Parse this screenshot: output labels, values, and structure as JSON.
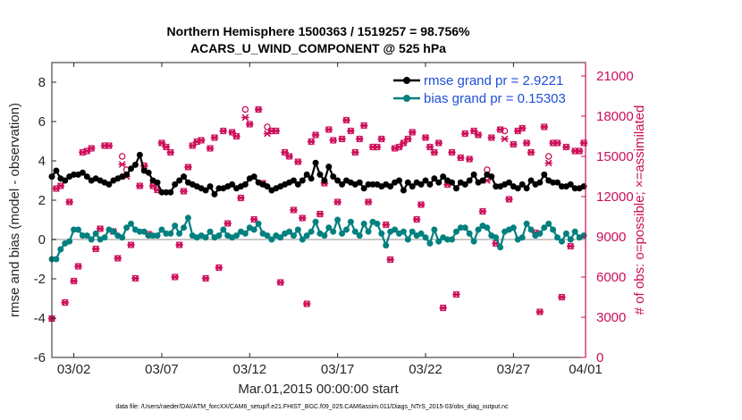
{
  "chart_data": {
    "type": "line",
    "title": "Northern Hemisphere 1500363 / 1519257 = 98.756%",
    "subtitle": "ACARS_U_WIND_COMPONENT @ 525 hPa",
    "xlabel": "Mar.01,2015 00:00:00 start",
    "ylabel_left": "rmse and bias (model - observation)",
    "ylabel_right": "# of obs: o=possible; ×=assimilated",
    "xlim": [
      0.75,
      31.1
    ],
    "ylim_left": [
      -6,
      9
    ],
    "ylim_right": [
      0,
      21999
    ],
    "x_ticks": [
      2,
      7,
      12,
      17,
      22,
      27,
      32
    ],
    "x_tick_labels": [
      "03/02",
      "03/07",
      "03/12",
      "03/17",
      "03/22",
      "03/27",
      "04/01"
    ],
    "y_ticks_left": [
      -6,
      -4,
      -2,
      0,
      2,
      4,
      6,
      8
    ],
    "y_tick_labels_left": [
      "-6",
      "-4",
      "-2",
      "0",
      "2",
      "4",
      "6",
      "8"
    ],
    "y_ticks_right": [
      0,
      3000,
      6000,
      9000,
      12000,
      15000,
      18000,
      21000
    ],
    "y_tick_labels_right": [
      "0",
      "3000",
      "6000",
      "9000",
      "12000",
      "15000",
      "18000",
      "21000"
    ],
    "legend_position": "top-right",
    "colors": {
      "rmse": "#000000",
      "bias": "#00807f",
      "obs": "#cc0e5a",
      "zero_line": "#c8c8c8",
      "legend_text": "#1f4fd8"
    },
    "series": [
      {
        "name": "rmse grand pr = 2.9221",
        "axis": "left",
        "x": [
          0.75,
          1.0,
          1.25,
          1.5,
          1.75,
          2.0,
          2.25,
          2.5,
          2.75,
          3.0,
          3.25,
          3.5,
          3.75,
          4.0,
          4.25,
          4.5,
          4.75,
          5.0,
          5.25,
          5.5,
          5.75,
          6.0,
          6.25,
          6.5,
          6.75,
          7.0,
          7.25,
          7.5,
          7.75,
          8.0,
          8.25,
          8.5,
          8.75,
          9.0,
          9.25,
          9.5,
          9.75,
          10.0,
          10.25,
          10.5,
          10.75,
          11.0,
          11.25,
          11.5,
          11.75,
          12.0,
          12.25,
          12.5,
          12.75,
          13.0,
          13.25,
          13.5,
          13.75,
          14.0,
          14.25,
          14.5,
          14.75,
          15.0,
          15.25,
          15.5,
          15.75,
          16.0,
          16.25,
          16.5,
          16.75,
          17.0,
          17.25,
          17.5,
          17.75,
          18.0,
          18.25,
          18.5,
          18.75,
          19.0,
          19.25,
          19.5,
          19.75,
          20.0,
          20.25,
          20.5,
          20.75,
          21.0,
          21.25,
          21.5,
          21.75,
          22.0,
          22.25,
          22.5,
          22.75,
          23.0,
          23.25,
          23.5,
          23.75,
          24.0,
          24.25,
          24.5,
          24.75,
          25.0,
          25.25,
          25.5,
          25.75,
          26.0,
          26.25,
          26.5,
          26.75,
          27.0,
          27.25,
          27.5,
          27.75,
          28.0,
          28.25,
          28.5,
          28.75,
          29.0,
          29.25,
          29.5,
          29.75,
          30.0,
          30.25,
          30.5,
          30.75,
          31.0
        ],
        "y": [
          3.2,
          3.5,
          3.1,
          3.0,
          3.2,
          3.3,
          3.3,
          3.4,
          3.2,
          3.0,
          3.1,
          3.0,
          2.9,
          2.8,
          3.0,
          3.1,
          3.2,
          3.3,
          3.6,
          3.8,
          4.3,
          3.5,
          3.4,
          3.0,
          2.9,
          2.4,
          2.4,
          2.4,
          2.8,
          3.0,
          3.2,
          2.9,
          2.8,
          2.7,
          2.6,
          2.5,
          2.7,
          2.3,
          2.6,
          2.6,
          2.7,
          2.8,
          2.6,
          2.7,
          2.8,
          3.1,
          3.2,
          2.9,
          2.8,
          2.7,
          2.5,
          2.6,
          2.7,
          2.8,
          2.9,
          3.0,
          2.8,
          3.0,
          3.3,
          3.1,
          3.9,
          3.3,
          3.0,
          3.7,
          3.2,
          3.0,
          2.8,
          3.0,
          2.9,
          2.8,
          2.9,
          2.6,
          2.8,
          2.8,
          2.8,
          2.7,
          2.8,
          2.7,
          2.9,
          3.0,
          2.5,
          2.9,
          2.7,
          2.9,
          2.8,
          3.0,
          2.8,
          3.1,
          2.9,
          3.2,
          3.0,
          2.9,
          2.6,
          2.9,
          2.8,
          3.0,
          3.3,
          2.9,
          3.0,
          3.3,
          3.2,
          2.7,
          2.7,
          2.8,
          2.9,
          2.7,
          2.6,
          2.8,
          2.6,
          3.0,
          2.8,
          2.9,
          3.3,
          3.0,
          2.9,
          2.9,
          2.7,
          2.7,
          2.8,
          2.6,
          2.6,
          2.7
        ]
      },
      {
        "name": "bias grand pr = 0.15303",
        "axis": "left",
        "x": [
          0.75,
          1.0,
          1.25,
          1.5,
          1.75,
          2.0,
          2.25,
          2.5,
          2.75,
          3.0,
          3.25,
          3.5,
          3.75,
          4.0,
          4.25,
          4.5,
          4.75,
          5.0,
          5.25,
          5.5,
          5.75,
          6.0,
          6.25,
          6.5,
          6.75,
          7.0,
          7.25,
          7.5,
          7.75,
          8.0,
          8.25,
          8.5,
          8.75,
          9.0,
          9.25,
          9.5,
          9.75,
          10.0,
          10.25,
          10.5,
          10.75,
          11.0,
          11.25,
          11.5,
          11.75,
          12.0,
          12.25,
          12.5,
          12.75,
          13.0,
          13.25,
          13.5,
          13.75,
          14.0,
          14.25,
          14.5,
          14.75,
          15.0,
          15.25,
          15.5,
          15.75,
          16.0,
          16.25,
          16.5,
          16.75,
          17.0,
          17.25,
          17.5,
          17.75,
          18.0,
          18.25,
          18.5,
          18.75,
          19.0,
          19.25,
          19.5,
          19.75,
          20.0,
          20.25,
          20.5,
          20.75,
          21.0,
          21.25,
          21.5,
          21.75,
          22.0,
          22.25,
          22.5,
          22.75,
          23.0,
          23.25,
          23.5,
          23.75,
          24.0,
          24.25,
          24.5,
          24.75,
          25.0,
          25.25,
          25.5,
          25.75,
          26.0,
          26.25,
          26.5,
          26.75,
          27.0,
          27.25,
          27.5,
          27.75,
          28.0,
          28.25,
          28.5,
          28.75,
          29.0,
          29.25,
          29.5,
          29.75,
          30.0,
          30.25,
          30.5,
          30.75,
          31.0
        ],
        "y": [
          -1.0,
          -1.0,
          -0.5,
          -0.2,
          -0.1,
          0.5,
          0.5,
          0.2,
          0.2,
          0.0,
          0.3,
          0.0,
          0.1,
          0.5,
          0.4,
          0.2,
          0.1,
          0.6,
          0.8,
          0.5,
          0.4,
          0.4,
          0.2,
          0.2,
          0.2,
          0.5,
          0.3,
          0.3,
          0.7,
          0.3,
          0.6,
          1.1,
          0.2,
          0.1,
          0.2,
          0.1,
          0.4,
          0.1,
          0.2,
          0.5,
          0.2,
          0.1,
          0.2,
          0.4,
          0.3,
          0.6,
          0.5,
          0.8,
          0.3,
          0.2,
          0.0,
          0.2,
          0.1,
          0.3,
          0.4,
          0.2,
          0.5,
          0.0,
          0.2,
          0.4,
          0.9,
          0.3,
          0.2,
          0.6,
          0.4,
          1.0,
          0.3,
          0.5,
          0.9,
          0.4,
          0.2,
          0.8,
          0.4,
          0.9,
          0.8,
          0.3,
          -0.3,
          0.4,
          0.5,
          0.3,
          0.4,
          0.0,
          0.4,
          0.2,
          0.3,
          0.1,
          -0.2,
          0.5,
          -0.1,
          0.1,
          0.0,
          0.0,
          0.4,
          0.6,
          0.6,
          0.3,
          -0.1,
          0.5,
          0.7,
          0.6,
          0.2,
          0.1,
          -0.4,
          0.4,
          0.5,
          0.6,
          0.0,
          0.1,
          0.8,
          0.5,
          0.2,
          0.3,
          0.6,
          0.8,
          0.5,
          0.1,
          -0.1,
          0.3,
          0.0,
          0.4,
          0.1,
          0.2
        ]
      },
      {
        "name": "# of obs possible (o)",
        "axis": "right",
        "marker": "circle",
        "x": [
          0.75,
          1.0,
          1.25,
          1.5,
          1.75,
          2.0,
          2.25,
          2.5,
          2.75,
          3.0,
          3.25,
          3.5,
          3.75,
          4.0,
          4.25,
          4.5,
          4.75,
          5.0,
          5.25,
          5.5,
          5.75,
          6.0,
          6.25,
          6.5,
          6.75,
          7.0,
          7.25,
          7.5,
          7.75,
          8.0,
          8.25,
          8.5,
          8.75,
          9.0,
          9.25,
          9.5,
          9.75,
          10.0,
          10.25,
          10.5,
          10.75,
          11.0,
          11.25,
          11.5,
          11.75,
          12.0,
          12.25,
          12.5,
          12.75,
          13.0,
          13.25,
          13.5,
          13.75,
          14.0,
          14.25,
          14.5,
          14.75,
          15.0,
          15.25,
          15.5,
          15.75,
          16.0,
          16.25,
          16.5,
          16.75,
          17.0,
          17.25,
          17.5,
          17.75,
          18.0,
          18.25,
          18.5,
          18.75,
          19.0,
          19.25,
          19.5,
          19.75,
          20.0,
          20.25,
          20.5,
          20.75,
          21.0,
          21.25,
          21.5,
          21.75,
          22.0,
          22.25,
          22.5,
          22.75,
          23.0,
          23.25,
          23.5,
          23.75,
          24.0,
          24.25,
          24.5,
          24.75,
          25.0,
          25.25,
          25.5,
          25.75,
          26.0,
          26.25,
          26.5,
          26.75,
          27.0,
          27.25,
          27.5,
          27.75,
          28.0,
          28.25,
          28.5,
          28.75,
          29.0,
          29.25,
          29.5,
          29.75,
          30.0,
          30.25,
          30.5,
          30.75,
          31.0
        ],
        "y": [
          2900,
          12600,
          12800,
          4100,
          11600,
          5700,
          6800,
          15300,
          15400,
          15600,
          8100,
          9600,
          15800,
          15800,
          9400,
          7400,
          15000,
          14000,
          8400,
          5900,
          12800,
          14300,
          9200,
          12800,
          12500,
          16000,
          15700,
          15300,
          6000,
          8400,
          12400,
          14200,
          15800,
          16100,
          16200,
          5900,
          15600,
          16400,
          6700,
          16900,
          10000,
          16800,
          16500,
          11900,
          18500,
          17400,
          10300,
          18500,
          13000,
          17200,
          16900,
          16900,
          5600,
          15300,
          15000,
          11000,
          14600,
          10400,
          4000,
          16100,
          16600,
          10700,
          13000,
          17000,
          16200,
          11600,
          16300,
          17700,
          16900,
          15300,
          16300,
          17300,
          11600,
          15700,
          15700,
          16300,
          9900,
          7300,
          15600,
          15700,
          16000,
          16300,
          16800,
          10300,
          11400,
          16400,
          15700,
          15300,
          16000,
          3700,
          12900,
          15300,
          4700,
          14900,
          16700,
          14800,
          16900,
          16600,
          10900,
          14000,
          16400,
          8500,
          17000,
          16900,
          11800,
          15900,
          16900,
          17100,
          16000,
          15300,
          9300,
          3400,
          17200,
          15000,
          16000,
          16000,
          4500,
          15700,
          8300,
          15400,
          15400,
          16000
        ]
      },
      {
        "name": "# of obs assimilated (×)",
        "axis": "right",
        "marker": "x",
        "x": [
          0.75,
          1.0,
          1.25,
          1.5,
          1.75,
          2.0,
          2.25,
          2.5,
          2.75,
          3.0,
          3.25,
          3.5,
          3.75,
          4.0,
          4.25,
          4.5,
          4.75,
          5.0,
          5.25,
          5.5,
          5.75,
          6.0,
          6.25,
          6.5,
          6.75,
          7.0,
          7.25,
          7.5,
          7.75,
          8.0,
          8.25,
          8.5,
          8.75,
          9.0,
          9.25,
          9.5,
          9.75,
          10.0,
          10.25,
          10.5,
          10.75,
          11.0,
          11.25,
          11.5,
          11.75,
          12.0,
          12.25,
          12.5,
          12.75,
          13.0,
          13.25,
          13.5,
          13.75,
          14.0,
          14.25,
          14.5,
          14.75,
          15.0,
          15.25,
          15.5,
          15.75,
          16.0,
          16.25,
          16.5,
          16.75,
          17.0,
          17.25,
          17.5,
          17.75,
          18.0,
          18.25,
          18.5,
          18.75,
          19.0,
          19.25,
          19.5,
          19.75,
          20.0,
          20.25,
          20.5,
          20.75,
          21.0,
          21.25,
          21.5,
          21.75,
          22.0,
          22.25,
          22.5,
          22.75,
          23.0,
          23.25,
          23.5,
          23.75,
          24.0,
          24.25,
          24.5,
          24.75,
          25.0,
          25.25,
          25.5,
          25.75,
          26.0,
          26.25,
          26.5,
          26.75,
          27.0,
          27.25,
          27.5,
          27.75,
          28.0,
          28.25,
          28.5,
          28.75,
          29.0,
          29.25,
          29.5,
          29.75,
          30.0,
          30.25,
          30.5,
          30.75,
          31.0
        ],
        "y": [
          2900,
          12600,
          12800,
          4100,
          11600,
          5700,
          6800,
          15300,
          15400,
          15600,
          8100,
          9600,
          15800,
          15800,
          9400,
          7400,
          14400,
          13500,
          8400,
          5900,
          12800,
          14300,
          9200,
          12800,
          12500,
          16000,
          15700,
          15300,
          6000,
          8400,
          12400,
          14200,
          15800,
          16100,
          16200,
          5900,
          15600,
          16400,
          6700,
          16900,
          10000,
          16800,
          16500,
          11900,
          17900,
          17400,
          10300,
          18500,
          13000,
          16700,
          16900,
          16900,
          5600,
          15300,
          15000,
          11000,
          14600,
          10400,
          4000,
          16100,
          16600,
          10700,
          13000,
          17000,
          16200,
          11600,
          16300,
          17700,
          16900,
          15300,
          16300,
          17300,
          11600,
          15700,
          15700,
          16300,
          9900,
          7300,
          15600,
          15700,
          16000,
          16300,
          16800,
          10300,
          11400,
          16400,
          15700,
          15300,
          16000,
          3700,
          12900,
          15300,
          4700,
          14900,
          16700,
          14800,
          16900,
          16600,
          10900,
          13200,
          16400,
          8500,
          17000,
          16300,
          11800,
          15900,
          16900,
          17100,
          16000,
          15300,
          9300,
          3400,
          17200,
          14500,
          16000,
          16000,
          4500,
          15700,
          8300,
          15400,
          15400,
          16000
        ]
      }
    ],
    "footer_note": "data file: /Users/raeder/DAI/ATM_forcXX/CAM6_setup/f.e21.FHIST_BGC.f09_025.CAM6assim.011/Diags_NTrS_2015-03/obs_diag_output.nc"
  }
}
